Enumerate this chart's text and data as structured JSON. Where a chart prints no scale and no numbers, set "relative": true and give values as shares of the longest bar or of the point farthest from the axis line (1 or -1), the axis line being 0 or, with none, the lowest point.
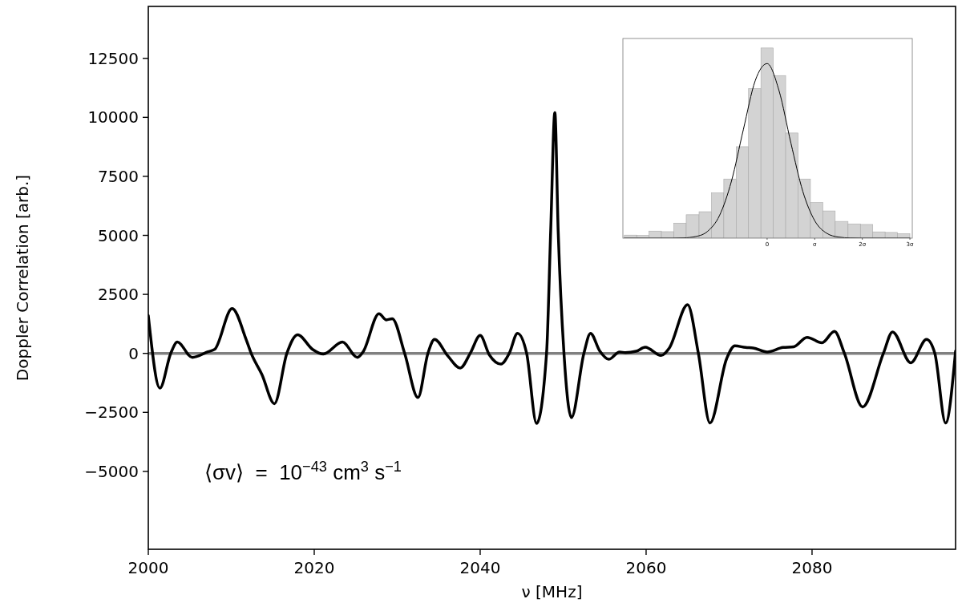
{
  "chart_data": [
    {
      "type": "line",
      "xlabel": "ν [MHz]",
      "ylabel": "Doppler Correlation [arb.]",
      "xlim": [
        2000,
        2097.3
      ],
      "ylim": [
        -8300,
        14700
      ],
      "xticks": [
        2000,
        2020,
        2040,
        2060,
        2080
      ],
      "yticks": [
        -5000,
        -2500,
        0,
        2500,
        5000,
        7500,
        10000,
        12500
      ],
      "grid": false,
      "ref_lines": [
        {
          "axis": "y",
          "value": 0,
          "color": "#808080"
        }
      ],
      "annotations": [
        "⟨σv⟩  =  10$^{−43}$ cm$^{3}$ s$^{−1}$"
      ],
      "series": [
        {
          "color": "#000000",
          "x": [
            2000,
            2001.4,
            2002.7,
            2003.5,
            2005.3,
            2007.2,
            2008,
            2010.1,
            2011.8,
            2012.4,
            2013.7,
            2015.2,
            2016.7,
            2018,
            2019.8,
            2021.1,
            2023.4,
            2025.2,
            2025.9,
            2027.8,
            2028.7,
            2029.4,
            2030.9,
            2032.5,
            2033.7,
            2034.5,
            2036.1,
            2037.6,
            2038.8,
            2040,
            2041.1,
            2042.5,
            2043.5,
            2044.5,
            2045.6,
            2046.8,
            2048,
            2048.5,
            2049,
            2049.4,
            2050.1,
            2051,
            2052.5,
            2053.3,
            2054.4,
            2055.5,
            2056.8,
            2057.5,
            2058.8,
            2059.9,
            2061.8,
            2062.8,
            2065,
            2066.3,
            2067.7,
            2069.7,
            2070.7,
            2072,
            2072.9,
            2074.6,
            2076.5,
            2077.8,
            2079.4,
            2081.2,
            2082.7,
            2083.9,
            2086.1,
            2088.6,
            2089.7,
            2091.9,
            2093.8,
            2094.8,
            2096.1,
            2097.3
          ],
          "values": [
            1600,
            -1470,
            0,
            480,
            -170,
            70,
            170,
            1900,
            580,
            0,
            -900,
            -2130,
            0,
            790,
            170,
            -30,
            480,
            -170,
            70,
            1680,
            1420,
            1470,
            0,
            -1870,
            0,
            590,
            -110,
            -620,
            0,
            760,
            -60,
            -450,
            0,
            850,
            0,
            -2970,
            0,
            5200,
            10200,
            5200,
            0,
            -2720,
            0,
            850,
            110,
            -250,
            60,
            30,
            90,
            260,
            -90,
            230,
            2060,
            0,
            -2950,
            -230,
            320,
            250,
            230,
            60,
            250,
            280,
            680,
            450,
            930,
            0,
            -2270,
            0,
            910,
            -400,
            590,
            0,
            -2950,
            100
          ]
        }
      ]
    },
    {
      "type": "histogram",
      "relative": true,
      "xlim": [
        -3.03,
        3.05
      ],
      "xticks": [
        0,
        {
          "value": 1,
          "label": "σ"
        },
        {
          "value": 2,
          "label": "2σ"
        },
        {
          "value": 3,
          "label": "3σ"
        }
      ],
      "tick_labels": "x",
      "grid": false,
      "color": "#d3d3d3",
      "bins": [
        -3,
        -2.74,
        -2.48,
        -2.22,
        -1.96,
        -1.7,
        -1.43,
        -1.17,
        -0.91,
        -0.65,
        -0.39,
        -0.13,
        0.13,
        0.39,
        0.65,
        0.91,
        1.17,
        1.43,
        1.7,
        1.96,
        2.22,
        2.48,
        2.74,
        3
      ],
      "values": [
        0.016,
        0.014,
        0.037,
        0.034,
        0.079,
        0.123,
        0.139,
        0.238,
        0.311,
        0.481,
        0.787,
        1,
        0.855,
        0.553,
        0.311,
        0.187,
        0.143,
        0.088,
        0.075,
        0.072,
        0.033,
        0.03,
        0.024
      ],
      "series": [
        {
          "type": "line",
          "color": "#000000",
          "x": [
            -3,
            -2.5,
            -2,
            -1.75,
            -1.5,
            -1.25,
            -1,
            -0.75,
            -0.5,
            -0.25,
            0,
            0.25,
            0.5,
            0.75,
            1,
            1.25,
            1.5,
            1.75,
            2,
            2.5,
            3
          ],
          "values": [
            0,
            0,
            0,
            0.0015,
            0.0085,
            0.036,
            0.119,
            0.299,
            0.57,
            0.828,
            0.918,
            0.776,
            0.5,
            0.246,
            0.092,
            0.026,
            0.0057,
            0.001,
            0,
            0,
            0
          ]
        }
      ]
    }
  ]
}
